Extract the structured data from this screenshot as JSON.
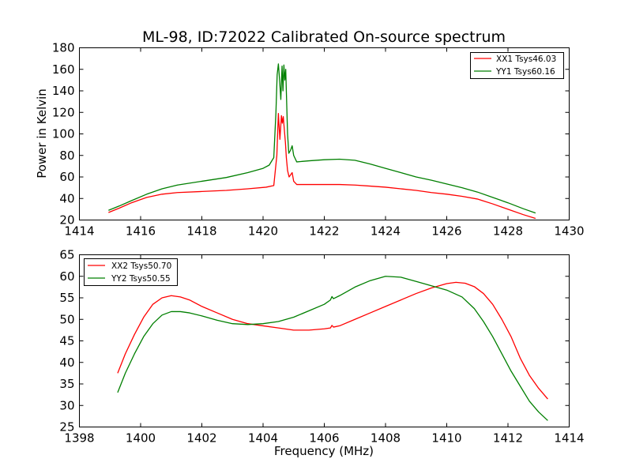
{
  "figure": {
    "title": "ML-98, ID:72022 Calibrated On-source spectrum",
    "xlabel": "Frequency (MHz)",
    "ylabel_top": "Power in Kelvin"
  },
  "colors": {
    "red": "#ff0000",
    "green": "#007f00"
  },
  "chart_data": [
    {
      "type": "line",
      "title": "ML-98, ID:72022 Calibrated On-source spectrum",
      "ylabel": "Power in Kelvin",
      "xlim": [
        1414,
        1430
      ],
      "ylim": [
        20,
        180
      ],
      "xticks": [
        1414,
        1416,
        1418,
        1420,
        1422,
        1424,
        1426,
        1428,
        1430
      ],
      "yticks": [
        20,
        40,
        60,
        80,
        100,
        120,
        140,
        160,
        180
      ],
      "legend": "top-right",
      "series": [
        {
          "name": "XX1 Tsys46.03",
          "color": "#ff0000",
          "x": [
            1414.95,
            1415.3,
            1415.7,
            1416.2,
            1416.7,
            1417.2,
            1418.0,
            1418.8,
            1419.5,
            1420.1,
            1420.35,
            1420.45,
            1420.5,
            1420.55,
            1420.6,
            1420.63,
            1420.66,
            1420.7,
            1420.73,
            1420.76,
            1420.8,
            1420.85,
            1420.9,
            1420.95,
            1421.0,
            1421.1,
            1421.5,
            1422.0,
            1422.5,
            1423.0,
            1423.5,
            1424.0,
            1424.5,
            1425.0,
            1425.5,
            1426.0,
            1426.5,
            1427.0,
            1427.5,
            1428.0,
            1428.5,
            1428.9
          ],
          "values": [
            27,
            31,
            36,
            41,
            44,
            45.5,
            46.5,
            47.5,
            49,
            50.5,
            52,
            80,
            119,
            95,
            117,
            110,
            116,
            102,
            92,
            78,
            66,
            60,
            62,
            64,
            56,
            53,
            53,
            53,
            53,
            52.5,
            51.5,
            50.5,
            49,
            47.5,
            45.5,
            44,
            42,
            39.5,
            35,
            30,
            25,
            21.5
          ]
        },
        {
          "name": "YY1 Tsys60.16",
          "color": "#007f00",
          "x": [
            1414.95,
            1415.3,
            1415.7,
            1416.2,
            1416.7,
            1417.2,
            1418.0,
            1418.8,
            1419.5,
            1420.0,
            1420.2,
            1420.35,
            1420.42,
            1420.46,
            1420.5,
            1420.54,
            1420.58,
            1420.62,
            1420.65,
            1420.68,
            1420.71,
            1420.74,
            1420.77,
            1420.8,
            1420.84,
            1420.9,
            1420.95,
            1421.0,
            1421.1,
            1421.5,
            1422.0,
            1422.5,
            1423.0,
            1423.5,
            1424.0,
            1424.5,
            1425.0,
            1425.5,
            1426.0,
            1426.5,
            1427.0,
            1427.5,
            1428.0,
            1428.5,
            1428.9
          ],
          "values": [
            29,
            33,
            38,
            44,
            49,
            52.5,
            56,
            59.5,
            64,
            68,
            71,
            78,
            120,
            155,
            165,
            150,
            132,
            163,
            140,
            164,
            150,
            160,
            130,
            100,
            82,
            85,
            89,
            80,
            74,
            75,
            76,
            76.5,
            75.5,
            72,
            68,
            64,
            60,
            57,
            53.5,
            50,
            46,
            41,
            36,
            30.5,
            26.5
          ]
        }
      ]
    },
    {
      "type": "line",
      "xlabel": "Frequency (MHz)",
      "xlim": [
        1398,
        1414
      ],
      "ylim": [
        25,
        65
      ],
      "xticks": [
        1398,
        1400,
        1402,
        1404,
        1406,
        1408,
        1410,
        1412,
        1414
      ],
      "yticks": [
        25,
        30,
        35,
        40,
        45,
        50,
        55,
        60,
        65
      ],
      "legend": "top-left",
      "series": [
        {
          "name": "XX2 Tsys50.70",
          "color": "#ff0000",
          "x": [
            1399.25,
            1399.5,
            1399.8,
            1400.1,
            1400.4,
            1400.7,
            1401.0,
            1401.3,
            1401.6,
            1402.0,
            1402.5,
            1403.0,
            1403.5,
            1404.0,
            1404.5,
            1405.0,
            1405.5,
            1406.0,
            1406.2,
            1406.25,
            1406.3,
            1406.5,
            1407.0,
            1407.5,
            1408.0,
            1408.5,
            1409.0,
            1409.5,
            1410.0,
            1410.3,
            1410.6,
            1410.9,
            1411.2,
            1411.5,
            1411.8,
            1412.1,
            1412.4,
            1412.7,
            1413.0,
            1413.3
          ],
          "values": [
            37.5,
            42,
            46.5,
            50.5,
            53.5,
            55,
            55.5,
            55.2,
            54.5,
            53,
            51.5,
            50,
            49,
            48.5,
            48,
            47.5,
            47.5,
            47.8,
            48,
            48.6,
            48.2,
            48.5,
            50,
            51.5,
            53,
            54.5,
            56,
            57.3,
            58.3,
            58.6,
            58.4,
            57.6,
            56,
            53.5,
            50,
            46,
            41,
            37,
            34,
            31.5
          ]
        },
        {
          "name": "YY2 Tsys50.55",
          "color": "#007f00",
          "x": [
            1399.25,
            1399.5,
            1399.8,
            1400.1,
            1400.4,
            1400.7,
            1401.0,
            1401.3,
            1401.6,
            1402.0,
            1402.5,
            1403.0,
            1403.5,
            1404.0,
            1404.5,
            1405.0,
            1405.5,
            1406.0,
            1406.2,
            1406.25,
            1406.3,
            1406.5,
            1407.0,
            1407.5,
            1408.0,
            1408.5,
            1409.0,
            1409.5,
            1410.0,
            1410.5,
            1410.9,
            1411.2,
            1411.5,
            1411.8,
            1412.1,
            1412.4,
            1412.7,
            1413.0,
            1413.3
          ],
          "values": [
            33,
            37.5,
            42,
            46,
            49,
            51,
            51.8,
            51.8,
            51.5,
            50.8,
            49.8,
            49,
            48.8,
            49,
            49.5,
            50.5,
            52,
            53.5,
            54.5,
            55.3,
            54.8,
            55.5,
            57.5,
            59,
            60,
            59.8,
            58.8,
            57.8,
            56.8,
            55.2,
            52.5,
            49.5,
            46,
            42,
            38,
            34.5,
            31,
            28.5,
            26.5
          ]
        }
      ]
    }
  ]
}
